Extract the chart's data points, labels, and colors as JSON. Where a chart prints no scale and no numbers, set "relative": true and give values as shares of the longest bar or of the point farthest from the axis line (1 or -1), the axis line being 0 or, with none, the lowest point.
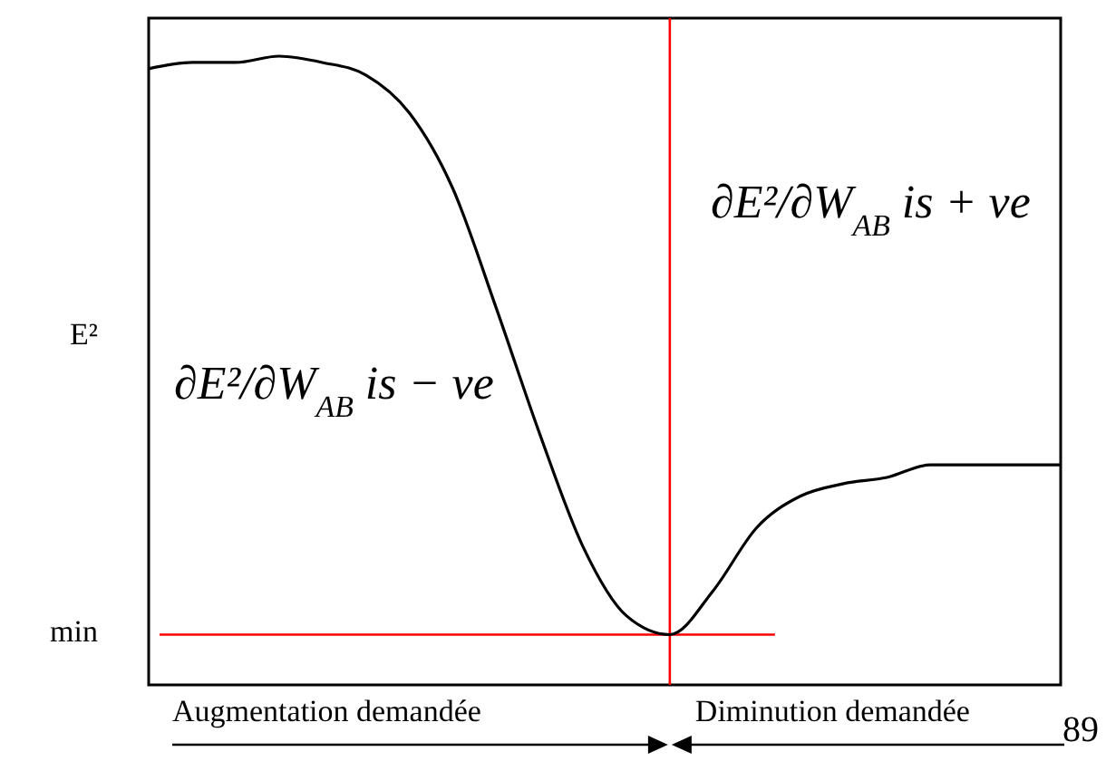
{
  "chart_data": {
    "type": "line",
    "relative": true,
    "ylabel": "E²",
    "categories": [
      null,
      null,
      null,
      null,
      null,
      null,
      null,
      null,
      null,
      null,
      null,
      null,
      null,
      null,
      null,
      null,
      null,
      null,
      null,
      null,
      null,
      null
    ],
    "series": [
      {
        "color": "#000000",
        "values": [
          0.98,
          0.99,
          0.99,
          1,
          0.99,
          0.97,
          0.91,
          0.79,
          0.6,
          0.4,
          0.22,
          0.11,
          0.08,
          0.15,
          0.25,
          0.3,
          0.32,
          0.33,
          0.35,
          0.35,
          0.35,
          0.35
        ]
      }
    ],
    "ref_lines": [
      {
        "axis": "y",
        "value": 0.08,
        "label": "min",
        "color": "#ff0000"
      }
    ],
    "annotations": [
      "∂E²/∂W$_{AB}$ is − ve",
      "∂E²/∂W$_{AB}$ is + ve",
      "Augmentation demandée",
      "Diminution demandée",
      "89"
    ]
  }
}
